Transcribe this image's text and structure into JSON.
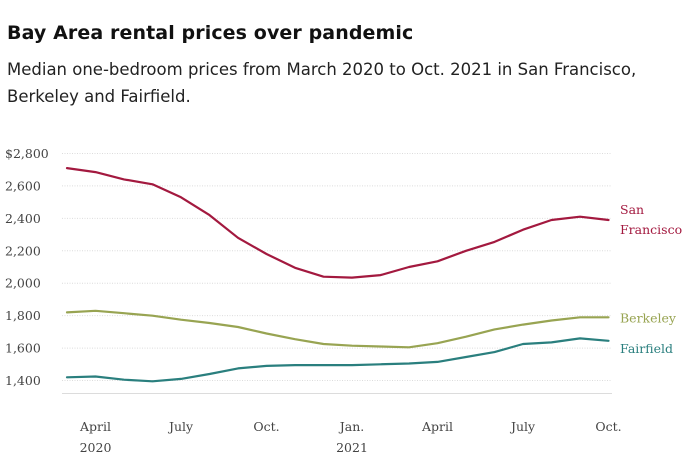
{
  "title": "Bay Area rental prices over pandemic",
  "subtitle": "Median one-bedroom prices from March 2020 to Oct. 2021 in San Francisco, Berkeley and Fairfield.",
  "chart_data": {
    "type": "line",
    "title": "Bay Area rental prices over pandemic",
    "subtitle": "Median one-bedroom prices from March 2020 to Oct. 2021 in San Francisco, Berkeley and Fairfield.",
    "x": [
      "2020-03",
      "2020-04",
      "2020-05",
      "2020-06",
      "2020-07",
      "2020-08",
      "2020-09",
      "2020-10",
      "2020-11",
      "2020-12",
      "2021-01",
      "2021-02",
      "2021-03",
      "2021-04",
      "2021-05",
      "2021-06",
      "2021-07",
      "2021-08",
      "2021-09",
      "2021-10"
    ],
    "y_ticks": [
      1400,
      1600,
      1800,
      2000,
      2200,
      2400,
      2600,
      2800
    ],
    "y_tick_labels": [
      "1,400",
      "1,600",
      "1,800",
      "2,000",
      "2,200",
      "2,400",
      "2,600",
      "$2,800"
    ],
    "ylim": [
      1320,
      2800
    ],
    "x_ticks": [
      {
        "x": "2020-04",
        "label": "April",
        "sublabel": "2020"
      },
      {
        "x": "2020-07",
        "label": "July",
        "sublabel": ""
      },
      {
        "x": "2020-10",
        "label": "Oct.",
        "sublabel": ""
      },
      {
        "x": "2021-01",
        "label": "Jan.",
        "sublabel": "2021"
      },
      {
        "x": "2021-04",
        "label": "April",
        "sublabel": ""
      },
      {
        "x": "2021-07",
        "label": "July",
        "sublabel": ""
      },
      {
        "x": "2021-10",
        "label": "Oct.",
        "sublabel": ""
      }
    ],
    "grid": true,
    "legend": "inline-right",
    "series": [
      {
        "name": "San Francisco",
        "label_lines": [
          "San",
          "Francisco"
        ],
        "color": "#a3193f",
        "values": [
          2710,
          2685,
          2640,
          2610,
          2530,
          2420,
          2280,
          2180,
          2095,
          2040,
          2035,
          2050,
          2100,
          2135,
          2200,
          2255,
          2330,
          2390,
          2410,
          2390
        ]
      },
      {
        "name": "Berkeley",
        "label_lines": [
          "Berkeley"
        ],
        "color": "#98a452",
        "values": [
          1820,
          1830,
          1815,
          1800,
          1775,
          1755,
          1730,
          1690,
          1655,
          1625,
          1615,
          1610,
          1605,
          1630,
          1670,
          1715,
          1745,
          1770,
          1790,
          1790
        ]
      },
      {
        "name": "Fairfield",
        "label_lines": [
          "Fairfield"
        ],
        "color": "#2a7f7e",
        "values": [
          1420,
          1425,
          1405,
          1395,
          1410,
          1440,
          1475,
          1490,
          1495,
          1495,
          1495,
          1500,
          1505,
          1515,
          1545,
          1575,
          1625,
          1635,
          1660,
          1645
        ]
      }
    ]
  }
}
